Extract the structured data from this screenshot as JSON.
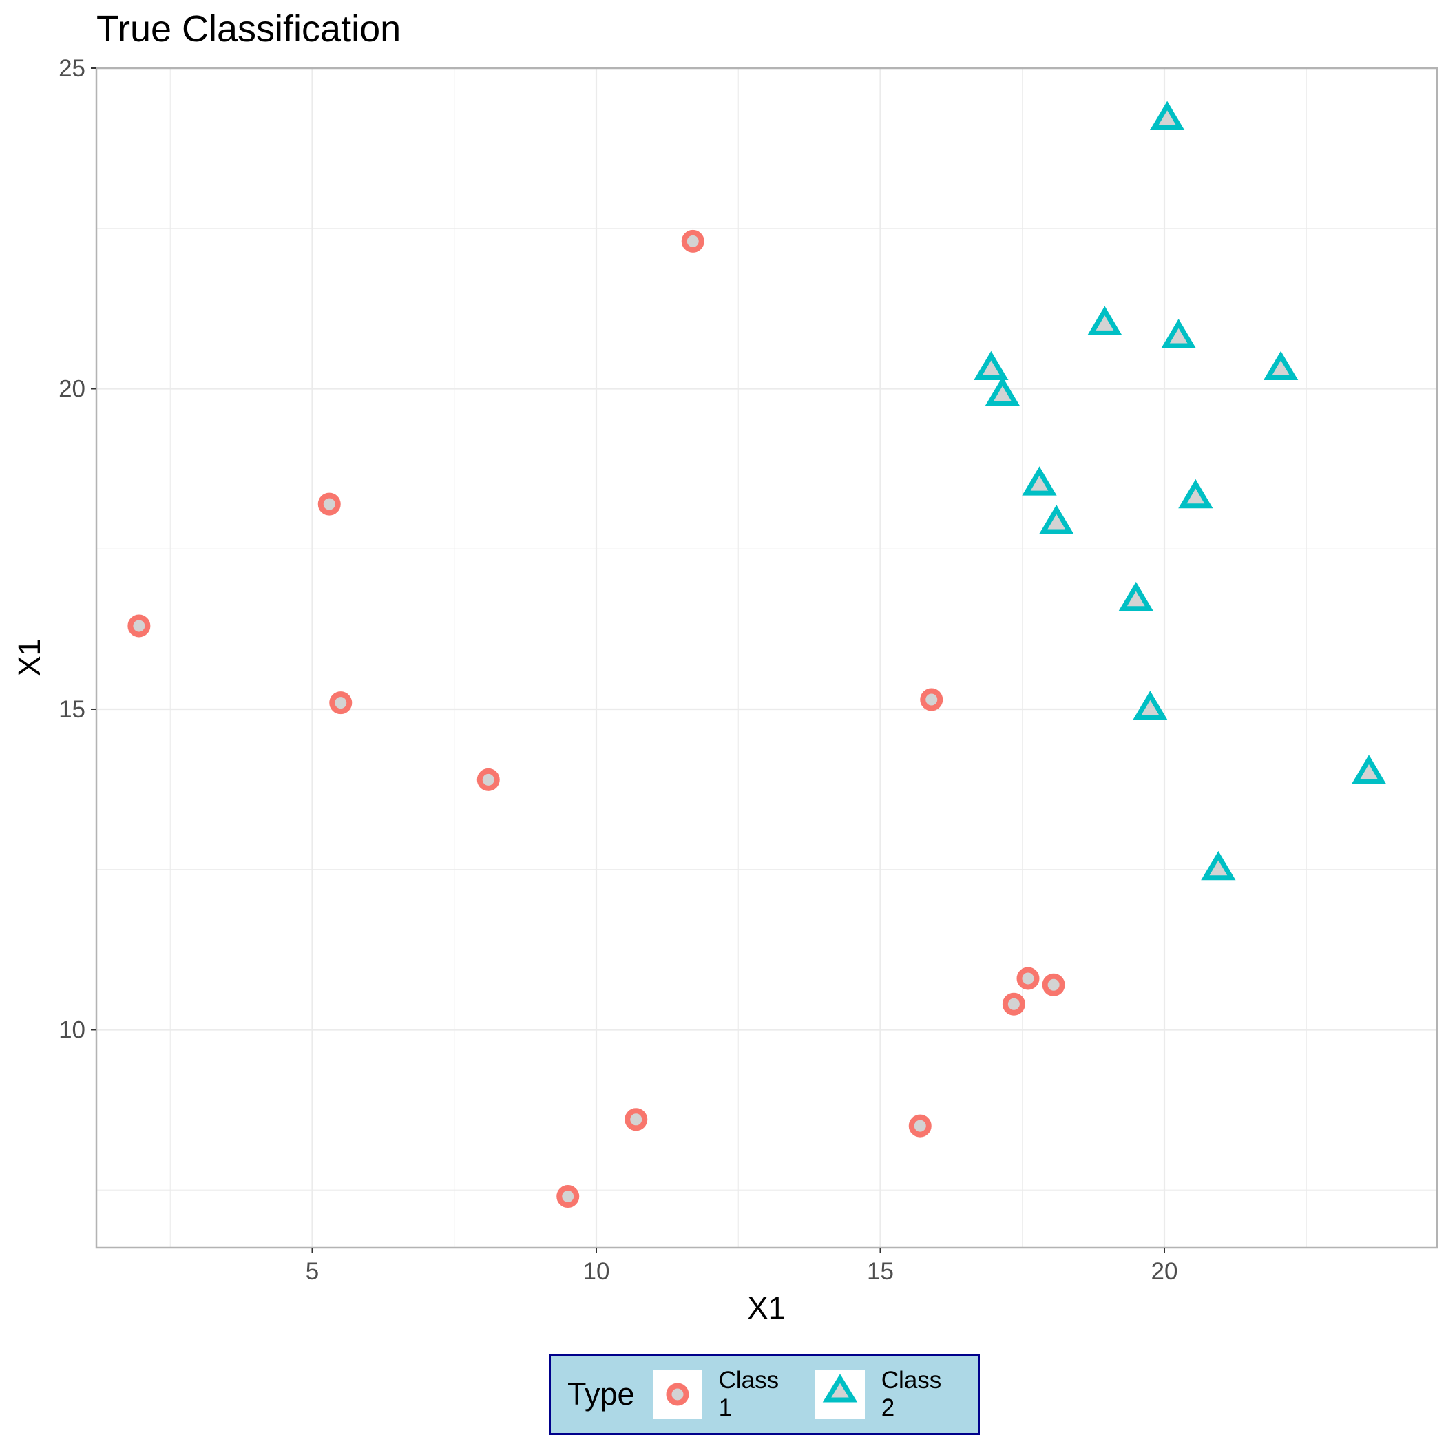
{
  "chart_data": {
    "type": "scatter",
    "title": "True Classification",
    "xlabel": "X1",
    "ylabel": "X1",
    "xlim": [
      1.2,
      24.8
    ],
    "ylim": [
      6.6,
      25
    ],
    "x_ticks": [
      "5",
      "10",
      "15",
      "20"
    ],
    "y_ticks": [
      "10",
      "15",
      "20",
      "25"
    ],
    "grid": true,
    "legend": {
      "title": "Type",
      "position": "bottom",
      "entries": [
        "Class 1",
        "Class 2"
      ],
      "background": "#add8e6",
      "border_color": "#00008b"
    },
    "series": [
      {
        "name": "Class 1",
        "shape": "circle",
        "color": "#f8766d",
        "points": [
          {
            "x": 11.7,
            "y": 22.3
          },
          {
            "x": 5.3,
            "y": 18.2
          },
          {
            "x": 1.95,
            "y": 16.3
          },
          {
            "x": 5.5,
            "y": 15.1
          },
          {
            "x": 8.1,
            "y": 13.9
          },
          {
            "x": 15.9,
            "y": 15.15
          },
          {
            "x": 17.6,
            "y": 10.8
          },
          {
            "x": 18.05,
            "y": 10.7
          },
          {
            "x": 17.35,
            "y": 10.4
          },
          {
            "x": 10.7,
            "y": 8.6
          },
          {
            "x": 15.7,
            "y": 8.5
          },
          {
            "x": 9.5,
            "y": 7.4
          }
        ]
      },
      {
        "name": "Class 2",
        "shape": "triangle",
        "color": "#00bfc4",
        "points": [
          {
            "x": 20.05,
            "y": 24.2
          },
          {
            "x": 18.95,
            "y": 21.0
          },
          {
            "x": 20.25,
            "y": 20.8
          },
          {
            "x": 16.95,
            "y": 20.3
          },
          {
            "x": 22.05,
            "y": 20.3
          },
          {
            "x": 17.15,
            "y": 19.9
          },
          {
            "x": 17.8,
            "y": 18.5
          },
          {
            "x": 20.55,
            "y": 18.3
          },
          {
            "x": 18.1,
            "y": 17.9
          },
          {
            "x": 19.5,
            "y": 16.7
          },
          {
            "x": 19.75,
            "y": 15.0
          },
          {
            "x": 23.6,
            "y": 14.0
          },
          {
            "x": 20.95,
            "y": 12.5
          }
        ]
      }
    ]
  }
}
